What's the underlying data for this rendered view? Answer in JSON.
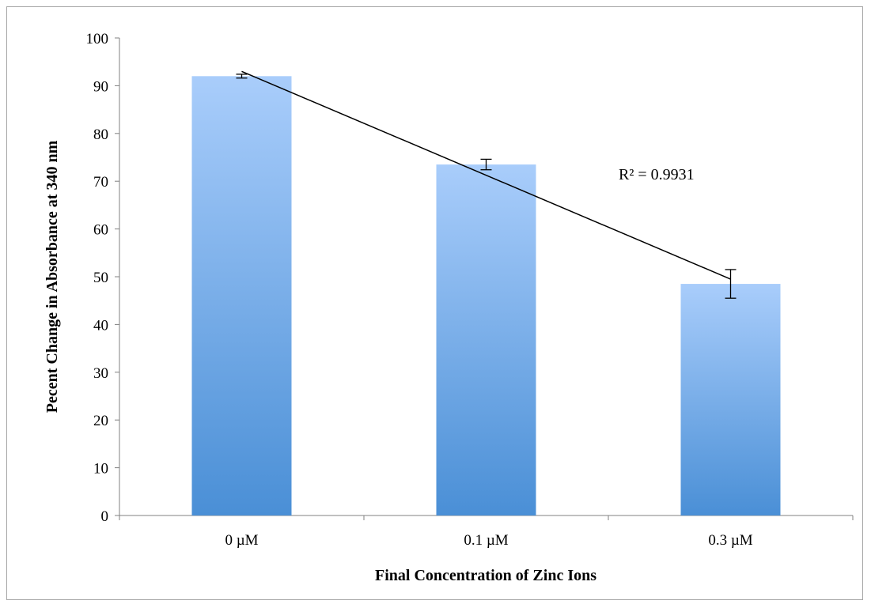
{
  "chart_data": {
    "type": "bar",
    "title": "",
    "xlabel": "Final Concentration of Zinc Ions",
    "ylabel": "Pecent Change in Absorbance at 340 nm",
    "categories": [
      "0 µM",
      "0.1 µM",
      "0.3 µM"
    ],
    "values": [
      92,
      73.5,
      48.5
    ],
    "error_bars": [
      0.4,
      1.1,
      3.0
    ],
    "ylim": [
      0,
      100
    ],
    "yticks": [
      "0",
      "10",
      "20",
      "30",
      "40",
      "50",
      "60",
      "70",
      "80",
      "90",
      "100"
    ],
    "trendline": {
      "type": "linear",
      "start": 93,
      "end": 49.5,
      "annotation": "R² = 0.9931"
    },
    "legend": "none",
    "grid": false,
    "colors": {
      "bar_top": "#a9cdfb",
      "bar_bottom": "#4a8fd6",
      "axis": "#808080",
      "line": "#000000"
    }
  }
}
